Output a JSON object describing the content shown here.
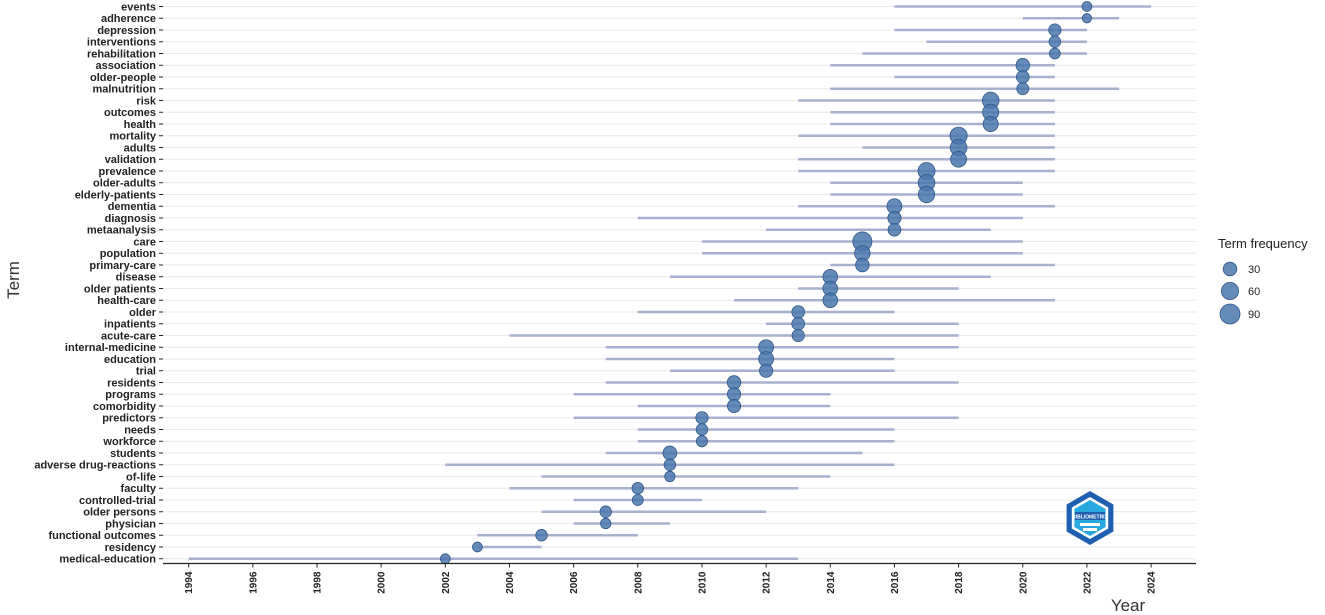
{
  "chart_data": {
    "type": "scatter",
    "xlabel": "Year",
    "ylabel": "Term",
    "x_ticks": [
      "1994",
      "1996",
      "1998",
      "2000",
      "2002",
      "2004",
      "2006",
      "2008",
      "2010",
      "2012",
      "2014",
      "2016",
      "2018",
      "2020",
      "2022",
      "2024"
    ],
    "xlim": [
      1993.2,
      2025.4
    ],
    "grid": true,
    "legend_title": "Term frequency",
    "legend_position": "right",
    "legend_sizes": [
      "30",
      "60",
      "90"
    ],
    "colors": {
      "point": "#4a77ad",
      "point_stroke": "#2f5687",
      "range_line": "#a7b1cf",
      "grid": "#e8e8e8",
      "axis": "#222222"
    },
    "terms": [
      {
        "term": "events",
        "start": 2016,
        "median": 2022,
        "end": 2024,
        "freq": 10
      },
      {
        "term": "adherence",
        "start": 2020,
        "median": 2022,
        "end": 2023,
        "freq": 8
      },
      {
        "term": "depression",
        "start": 2016,
        "median": 2021,
        "end": 2022,
        "freq": 22
      },
      {
        "term": "interventions",
        "start": 2017,
        "median": 2021,
        "end": 2022,
        "freq": 18
      },
      {
        "term": "rehabilitation",
        "start": 2015,
        "median": 2021,
        "end": 2022,
        "freq": 14
      },
      {
        "term": "association",
        "start": 2014,
        "median": 2020,
        "end": 2021,
        "freq": 30
      },
      {
        "term": "older-people",
        "start": 2016,
        "median": 2020,
        "end": 2021,
        "freq": 25
      },
      {
        "term": "malnutrition",
        "start": 2014,
        "median": 2020,
        "end": 2023,
        "freq": 20
      },
      {
        "term": "risk",
        "start": 2013,
        "median": 2019,
        "end": 2021,
        "freq": 55
      },
      {
        "term": "outcomes",
        "start": 2014,
        "median": 2019,
        "end": 2021,
        "freq": 50
      },
      {
        "term": "health",
        "start": 2014,
        "median": 2019,
        "end": 2021,
        "freq": 42
      },
      {
        "term": "mortality",
        "start": 2013,
        "median": 2018,
        "end": 2021,
        "freq": 60
      },
      {
        "term": "adults",
        "start": 2015,
        "median": 2018,
        "end": 2021,
        "freq": 55
      },
      {
        "term": "validation",
        "start": 2013,
        "median": 2018,
        "end": 2021,
        "freq": 48
      },
      {
        "term": "prevalence",
        "start": 2013,
        "median": 2017,
        "end": 2021,
        "freq": 58
      },
      {
        "term": "older-adults",
        "start": 2014,
        "median": 2017,
        "end": 2020,
        "freq": 55
      },
      {
        "term": "elderly-patients",
        "start": 2014,
        "median": 2017,
        "end": 2020,
        "freq": 52
      },
      {
        "term": "dementia",
        "start": 2013,
        "median": 2016,
        "end": 2021,
        "freq": 40
      },
      {
        "term": "diagnosis",
        "start": 2008,
        "median": 2016,
        "end": 2020,
        "freq": 28
      },
      {
        "term": "metaanalysis",
        "start": 2012,
        "median": 2016,
        "end": 2019,
        "freq": 25
      },
      {
        "term": "care",
        "start": 2010,
        "median": 2015,
        "end": 2020,
        "freq": 80
      },
      {
        "term": "population",
        "start": 2010,
        "median": 2015,
        "end": 2020,
        "freq": 45
      },
      {
        "term": "primary-care",
        "start": 2014,
        "median": 2015,
        "end": 2021,
        "freq": 30
      },
      {
        "term": "disease",
        "start": 2009,
        "median": 2014,
        "end": 2019,
        "freq": 38
      },
      {
        "term": "older patients",
        "start": 2013,
        "median": 2014,
        "end": 2018,
        "freq": 38
      },
      {
        "term": "health-care",
        "start": 2011,
        "median": 2014,
        "end": 2021,
        "freq": 38
      },
      {
        "term": "older",
        "start": 2008,
        "median": 2013,
        "end": 2016,
        "freq": 25
      },
      {
        "term": "inpatients",
        "start": 2012,
        "median": 2013,
        "end": 2018,
        "freq": 25
      },
      {
        "term": "acute-care",
        "start": 2004,
        "median": 2013,
        "end": 2018,
        "freq": 22
      },
      {
        "term": "internal-medicine",
        "start": 2007,
        "median": 2012,
        "end": 2018,
        "freq": 40
      },
      {
        "term": "education",
        "start": 2007,
        "median": 2012,
        "end": 2016,
        "freq": 40
      },
      {
        "term": "trial",
        "start": 2009,
        "median": 2012,
        "end": 2016,
        "freq": 28
      },
      {
        "term": "residents",
        "start": 2007,
        "median": 2011,
        "end": 2018,
        "freq": 30
      },
      {
        "term": "programs",
        "start": 2006,
        "median": 2011,
        "end": 2014,
        "freq": 28
      },
      {
        "term": "comorbidity",
        "start": 2008,
        "median": 2011,
        "end": 2014,
        "freq": 28
      },
      {
        "term": "predictors",
        "start": 2006,
        "median": 2010,
        "end": 2018,
        "freq": 22
      },
      {
        "term": "needs",
        "start": 2008,
        "median": 2010,
        "end": 2016,
        "freq": 18
      },
      {
        "term": "workforce",
        "start": 2008,
        "median": 2010,
        "end": 2016,
        "freq": 16
      },
      {
        "term": "students",
        "start": 2007,
        "median": 2009,
        "end": 2015,
        "freq": 32
      },
      {
        "term": "adverse drug-reactions",
        "start": 2002,
        "median": 2009,
        "end": 2016,
        "freq": 18
      },
      {
        "term": "of-life",
        "start": 2005,
        "median": 2009,
        "end": 2014,
        "freq": 12
      },
      {
        "term": "faculty",
        "start": 2004,
        "median": 2008,
        "end": 2013,
        "freq": 18
      },
      {
        "term": "controlled-trial",
        "start": 2006,
        "median": 2008,
        "end": 2010,
        "freq": 15
      },
      {
        "term": "older persons",
        "start": 2005,
        "median": 2007,
        "end": 2012,
        "freq": 18
      },
      {
        "term": "physician",
        "start": 2006,
        "median": 2007,
        "end": 2009,
        "freq": 12
      },
      {
        "term": "functional outcomes",
        "start": 2003,
        "median": 2005,
        "end": 2008,
        "freq": 18
      },
      {
        "term": "residency",
        "start": 2003,
        "median": 2003,
        "end": 2005,
        "freq": 10
      },
      {
        "term": "medical-education",
        "start": 1994,
        "median": 2002,
        "end": 2013,
        "freq": 10
      }
    ]
  },
  "watermark": {
    "text": "BIBLIOMETRIX",
    "colors": {
      "outer": "#1e5fb0",
      "inner": "#2aa9e0"
    }
  }
}
